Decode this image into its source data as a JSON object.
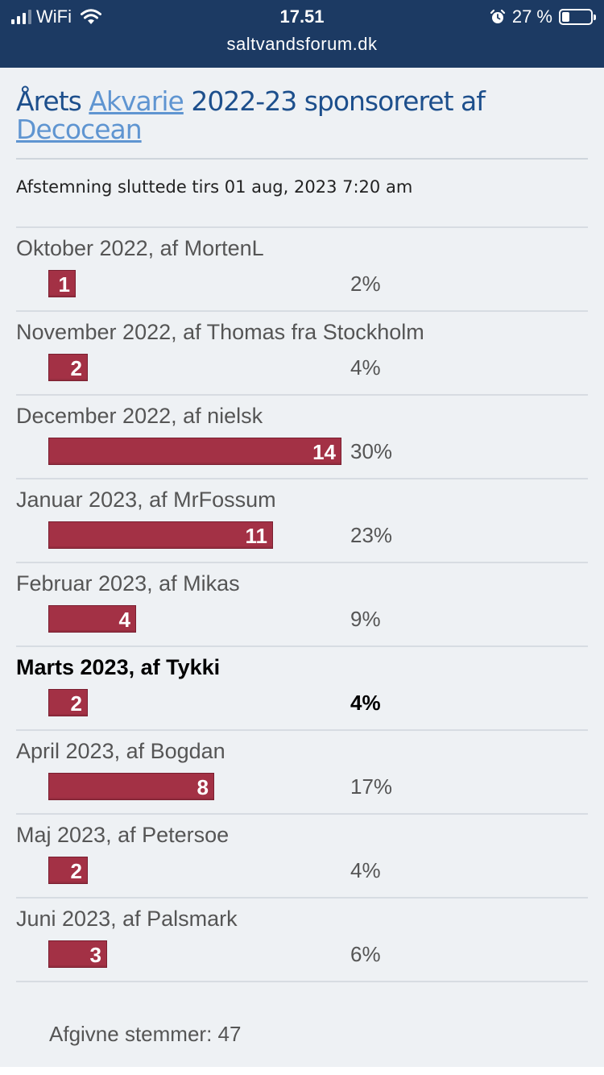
{
  "status_bar": {
    "carrier": "WiFi",
    "time": "17.51",
    "battery": "27 %",
    "battery_fraction": 0.27
  },
  "browser": {
    "url": "saltvandsforum.dk"
  },
  "poll": {
    "title_prefix": "Årets ",
    "title_link1": "Akvarie",
    "title_middle": " 2022-23 sponsoreret af ",
    "title_link2": "Decocean",
    "ended": "Afstemning sluttede tirs 01 aug, 2023 7:20 am",
    "options": [
      {
        "label": "Oktober 2022, af MortenL",
        "votes": "1",
        "percent": "2%",
        "fraction": 0.02,
        "voted": false
      },
      {
        "label": "November 2022, af Thomas fra Stockholm",
        "votes": "2",
        "percent": "4%",
        "fraction": 0.04,
        "voted": false
      },
      {
        "label": "December 2022, af nielsk",
        "votes": "14",
        "percent": "30%",
        "fraction": 0.3,
        "voted": false
      },
      {
        "label": "Januar 2023, af MrFossum",
        "votes": "11",
        "percent": "23%",
        "fraction": 0.23,
        "voted": false
      },
      {
        "label": "Februar 2023, af Mikas",
        "votes": "4",
        "percent": "9%",
        "fraction": 0.09,
        "voted": false
      },
      {
        "label": "Marts 2023, af Tykki",
        "votes": "2",
        "percent": "4%",
        "fraction": 0.04,
        "voted": true
      },
      {
        "label": "April 2023, af Bogdan",
        "votes": "8",
        "percent": "17%",
        "fraction": 0.17,
        "voted": false
      },
      {
        "label": "Maj 2023, af Petersoe",
        "votes": "2",
        "percent": "4%",
        "fraction": 0.04,
        "voted": false
      },
      {
        "label": "Juni 2023, af Palsmark",
        "votes": "3",
        "percent": "6%",
        "fraction": 0.06,
        "voted": false
      }
    ],
    "total": "Afgivne stemmer: 47"
  },
  "icons": {
    "signal": "signal-icon",
    "wifi": "wifi-icon",
    "alarm": "alarm-icon",
    "battery": "battery-icon"
  },
  "colors": {
    "header": "#1c3a63",
    "bar": "#a33145",
    "title": "#1d4f8c",
    "link": "#5f95d1"
  }
}
